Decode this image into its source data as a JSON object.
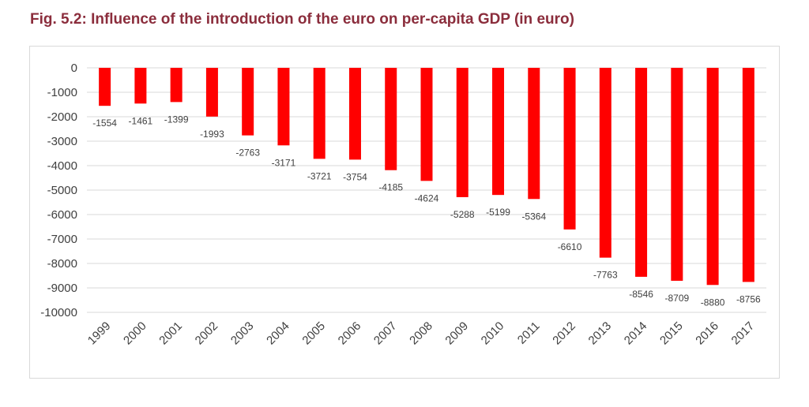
{
  "figure": {
    "title": "Fig. 5.2: Influence of the introduction of the euro on per-capita GDP (in euro)"
  },
  "colors": {
    "bar": "#ff0000",
    "grid": "#d9d9d9",
    "title": "#8b2d3c"
  },
  "chart_data": {
    "type": "bar",
    "title": "Fig. 5.2: Influence of the introduction of the euro on per-capita GDP (in euro)",
    "xlabel": "",
    "ylabel": "",
    "categories": [
      "1999",
      "2000",
      "2001",
      "2002",
      "2003",
      "2004",
      "2005",
      "2006",
      "2007",
      "2008",
      "2009",
      "2010",
      "2011",
      "2012",
      "2013",
      "2014",
      "2015",
      "2016",
      "2017"
    ],
    "values": [
      -1554,
      -1461,
      -1399,
      -1993,
      -2763,
      -3171,
      -3721,
      -3754,
      -4185,
      -4624,
      -5288,
      -5199,
      -5364,
      -6610,
      -7763,
      -8546,
      -8709,
      -8880,
      -8756
    ],
    "ylim": [
      -10000,
      0
    ],
    "yticks": [
      0,
      -1000,
      -2000,
      -3000,
      -4000,
      -5000,
      -6000,
      -7000,
      -8000,
      -9000,
      -10000
    ],
    "grid": true,
    "legend": "none",
    "data_labels": true
  }
}
